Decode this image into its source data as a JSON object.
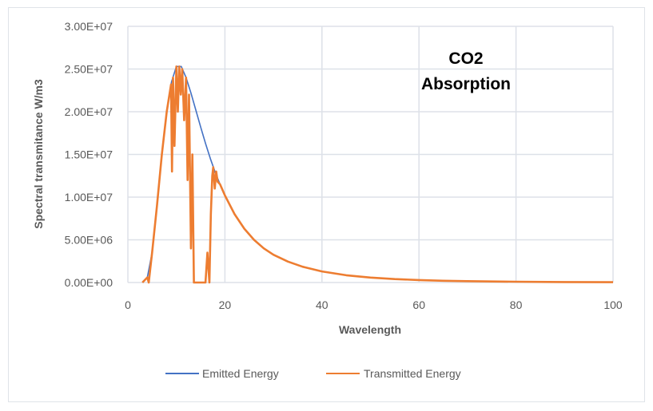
{
  "chart_data": {
    "type": "line",
    "title": "",
    "annotation": [
      "CO2",
      "Absorption"
    ],
    "xlabel": "Wavelength",
    "ylabel": "Spectral transmitance W/m3",
    "xlim": [
      0,
      100
    ],
    "ylim": [
      0,
      30000000
    ],
    "x_ticks": [
      0,
      20,
      40,
      60,
      80,
      100
    ],
    "x_tick_labels": [
      "0",
      "20",
      "40",
      "60",
      "80",
      "100"
    ],
    "y_ticks": [
      0,
      5000000,
      10000000,
      15000000,
      20000000,
      25000000,
      30000000
    ],
    "y_tick_labels": [
      "0.00E+00",
      "5.00E+06",
      "1.00E+07",
      "1.50E+07",
      "2.00E+07",
      "2.50E+07",
      "3.00E+07"
    ],
    "grid": true,
    "legend_position": "bottom",
    "series": [
      {
        "name": "Emitted Energy",
        "color": "#4472c4",
        "x": [
          3,
          4,
          5,
          6,
          7,
          8,
          9,
          10,
          11,
          12,
          13,
          14,
          15,
          16,
          17,
          18,
          19,
          20,
          22,
          24,
          26,
          28,
          30,
          33,
          36,
          40,
          45,
          50,
          55,
          60,
          65,
          70,
          80,
          90,
          100
        ],
        "y": [
          0,
          600000,
          3500000,
          9000000,
          15000000,
          20000000,
          23500000,
          25300000,
          25300000,
          24000000,
          22200000,
          20200000,
          18200000,
          16300000,
          14500000,
          12900000,
          11500000,
          10200000,
          8000000,
          6300000,
          5000000,
          4000000,
          3250000,
          2450000,
          1850000,
          1300000,
          850000,
          580000,
          400000,
          290000,
          210000,
          160000,
          90000,
          55000,
          35000
        ]
      },
      {
        "name": "Transmitted Energy",
        "color": "#ed7d31",
        "x": [
          3,
          4,
          4.3,
          4.6,
          5,
          6,
          7,
          8,
          8.9,
          9.1,
          9.3,
          9.6,
          10,
          10.3,
          10.6,
          10.9,
          11.2,
          11.6,
          12,
          12.3,
          12.6,
          13,
          13.3,
          13.6,
          14,
          15,
          16,
          16.4,
          16.8,
          17.1,
          17.4,
          17.6,
          17.9,
          18.2,
          18.5,
          19,
          20,
          22,
          24,
          26,
          28,
          30,
          33,
          36,
          40,
          45,
          50,
          55,
          60,
          65,
          70,
          80,
          90,
          100
        ],
        "y": [
          0,
          600000,
          0,
          1500000,
          3500000,
          9000000,
          15000000,
          20000000,
          23200000,
          13000000,
          24000000,
          16000000,
          25300000,
          20000000,
          25300000,
          22000000,
          25000000,
          19000000,
          24000000,
          12000000,
          22000000,
          4000000,
          15000000,
          0,
          0,
          0,
          0,
          3500000,
          0,
          8000000,
          12500000,
          13500000,
          11000000,
          13000000,
          11800000,
          11500000,
          10200000,
          8000000,
          6300000,
          5000000,
          4000000,
          3250000,
          2450000,
          1850000,
          1300000,
          850000,
          580000,
          400000,
          290000,
          210000,
          160000,
          90000,
          55000,
          35000
        ]
      }
    ]
  }
}
